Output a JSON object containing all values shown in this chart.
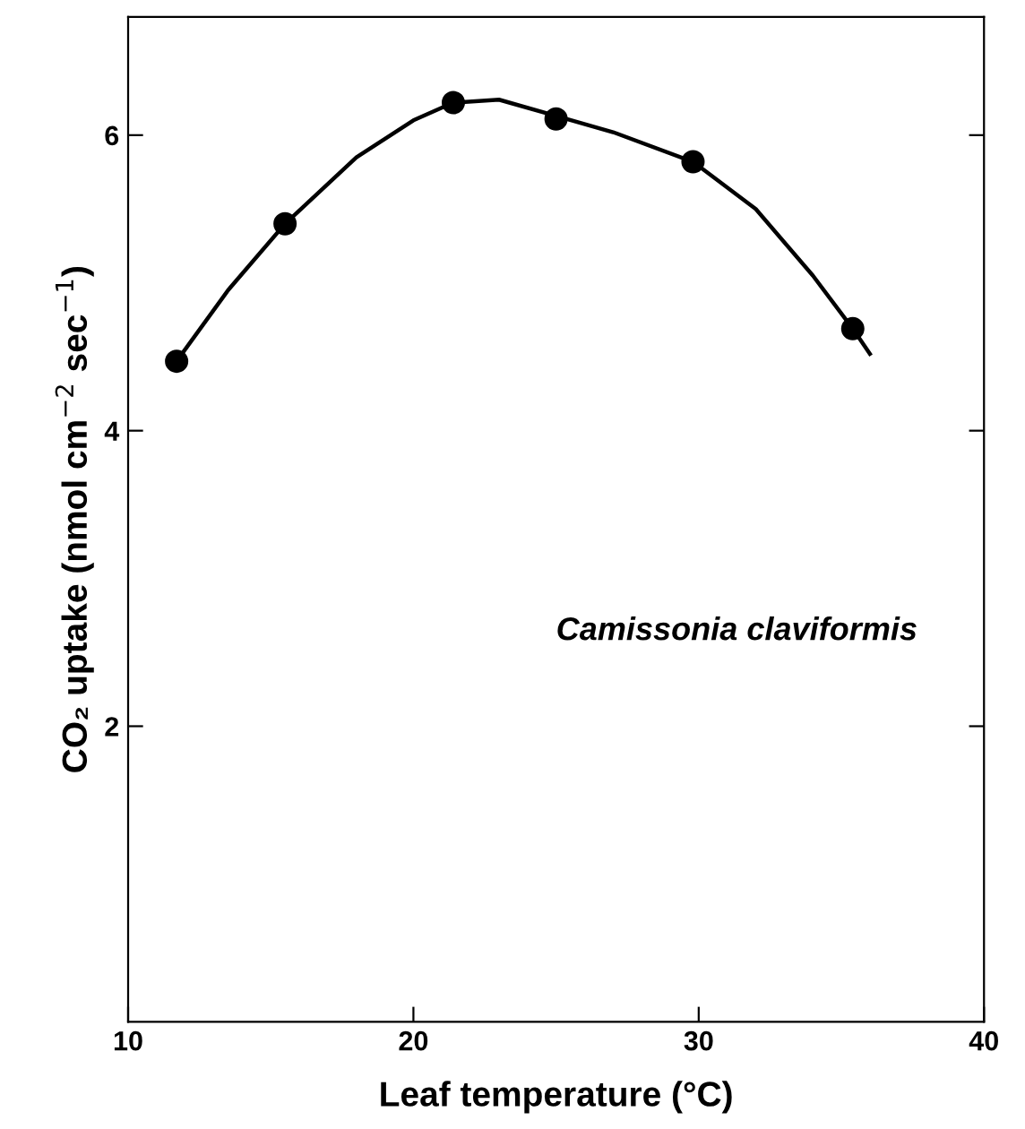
{
  "chart_data": {
    "type": "scatter",
    "xlabel": "Leaf temperature (°C)",
    "ylabel": "CO₂ uptake (nmol cm$^{−2}$ sec$^{−1}$)",
    "xlim": [
      10,
      40
    ],
    "xticks": [
      10,
      20,
      30,
      40
    ],
    "ylim": [
      0,
      6.8
    ],
    "yticks": [
      2,
      4,
      6
    ],
    "grid": false,
    "legend": false,
    "annotations": [
      "Camissonia claviformis"
    ],
    "series": [
      {
        "color": "#000000",
        "marker": "circle",
        "x": [
          11.7,
          15.5,
          21.4,
          25.0,
          29.8,
          35.4
        ],
        "values": [
          4.47,
          5.4,
          6.22,
          6.11,
          5.82,
          4.69
        ]
      },
      {
        "type": "line",
        "color": "#000000",
        "marker": "none",
        "line_style": "solid",
        "x": [
          11.7,
          13.5,
          15.5,
          18,
          20,
          21.4,
          23,
          25,
          27,
          29.8,
          32,
          34,
          35.4,
          36
        ],
        "values": [
          4.47,
          4.95,
          5.4,
          5.85,
          6.1,
          6.22,
          6.24,
          6.13,
          6.02,
          5.82,
          5.5,
          5.05,
          4.69,
          4.52
        ]
      }
    ]
  }
}
